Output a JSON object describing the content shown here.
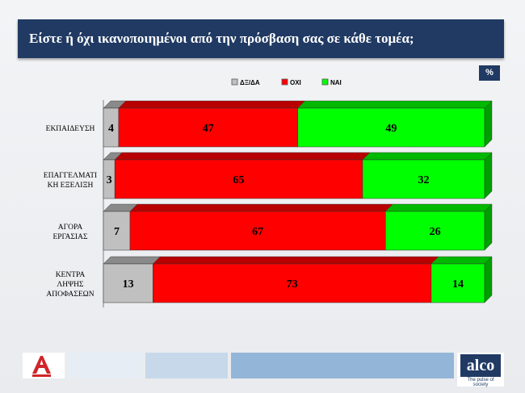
{
  "title": "Είστε ή όχι ικανοποιημένοι από την πρόσβαση σας σε κάθε τομέα;",
  "unit_badge": "%",
  "brand": {
    "name": "alco",
    "tagline": "The pulse of society"
  },
  "colors": {
    "title_bar": "#203a63",
    "dk": "#c0c0c0",
    "no": "#ff0000",
    "yes": "#00ff00"
  },
  "chart_data": {
    "type": "bar",
    "orientation": "horizontal",
    "stacked": true,
    "legend_position": "top",
    "xlim": [
      0,
      100
    ],
    "categories": [
      [
        "ΕΚΠΑΙΔΕΥΣΗ"
      ],
      [
        "ΕΠΑΓΓΕΛΜΑΤΙ",
        "ΚΗ ΕΞΕΛΙΞΗ"
      ],
      [
        "ΑΓΟΡΑ",
        "ΕΡΓΑΣΙΑΣ"
      ],
      [
        "ΚΕΝΤΡΑ",
        "ΛΗΨΗΣ",
        "ΑΠΟΦΑΣΕΩΝ"
      ]
    ],
    "series": [
      {
        "name": "ΔΞ/ΔΑ",
        "color": "#c0c0c0",
        "values": [
          4,
          3,
          7,
          13
        ]
      },
      {
        "name": "ΟΧΙ",
        "color": "#ff0000",
        "values": [
          47,
          65,
          67,
          73
        ]
      },
      {
        "name": "ΝΑΙ",
        "color": "#00ff00",
        "values": [
          49,
          32,
          26,
          14
        ]
      }
    ]
  }
}
